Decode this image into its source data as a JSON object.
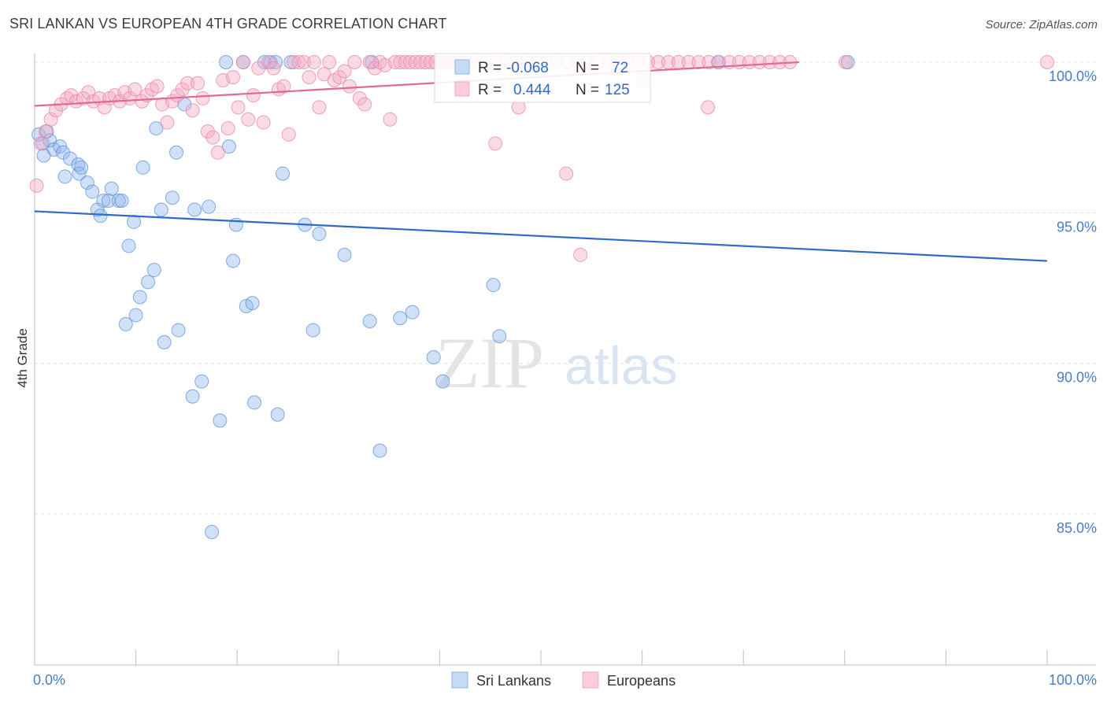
{
  "title": "SRI LANKAN VS EUROPEAN 4TH GRADE CORRELATION CHART",
  "source": "Source: ZipAtlas.com",
  "watermark": {
    "zip": "ZIP",
    "atlas": "atlas"
  },
  "chart_data": {
    "type": "scatter",
    "title": "SRI LANKAN VS EUROPEAN 4TH GRADE CORRELATION CHART",
    "xlabel": "",
    "ylabel": "4th Grade",
    "xlim": [
      0,
      100
    ],
    "ylim": [
      80.5,
      100.8
    ],
    "x_tick_labels": [
      {
        "value": 0,
        "label": "0.0%"
      },
      {
        "value": 100,
        "label": "100.0%"
      }
    ],
    "x_minor_ticks": [
      0,
      10,
      20,
      30,
      40,
      50,
      60,
      70,
      80,
      90,
      100
    ],
    "y_ticks": [
      {
        "value": 100,
        "label": "100.0%"
      },
      {
        "value": 95,
        "label": "95.0%"
      },
      {
        "value": 90,
        "label": "90.0%"
      },
      {
        "value": 85,
        "label": "85.0%"
      }
    ],
    "legend": {
      "placement": "top-center",
      "rows": [
        {
          "r_label": "R =",
          "r_value": "-0.068",
          "n_label": "N =",
          "n_value": "72",
          "color": "#8fb6ea"
        },
        {
          "r_label": "R =",
          "r_value": "0.444",
          "n_label": "N =",
          "n_value": "125",
          "color": "#f4a9c0"
        }
      ]
    },
    "series": [
      {
        "name": "Sri Lankans",
        "color": "#8fb6ea",
        "stroke": "#5e93d8",
        "trendline": {
          "x": [
            0,
            100
          ],
          "y": [
            95.05,
            93.4
          ],
          "color": "#2f6ac8"
        },
        "points": [
          [
            0.4,
            97.6
          ],
          [
            0.8,
            97.3
          ],
          [
            1.2,
            97.7
          ],
          [
            1.5,
            97.4
          ],
          [
            1.9,
            97.1
          ],
          [
            2.5,
            97.2
          ],
          [
            2.8,
            97.0
          ],
          [
            3.5,
            96.8
          ],
          [
            4.3,
            96.6
          ],
          [
            4.4,
            96.3
          ],
          [
            4.6,
            96.5
          ],
          [
            5.2,
            96.0
          ],
          [
            5.7,
            95.7
          ],
          [
            6.2,
            95.1
          ],
          [
            6.5,
            94.9
          ],
          [
            6.8,
            95.4
          ],
          [
            7.3,
            95.4
          ],
          [
            7.6,
            95.8
          ],
          [
            8.3,
            95.4
          ],
          [
            8.6,
            95.4
          ],
          [
            9.3,
            93.9
          ],
          [
            9.8,
            94.7
          ],
          [
            10.4,
            92.2
          ],
          [
            10.7,
            96.5
          ],
          [
            11.2,
            92.7
          ],
          [
            11.8,
            93.1
          ],
          [
            12.0,
            97.8
          ],
          [
            12.5,
            95.1
          ],
          [
            12.8,
            90.7
          ],
          [
            13.6,
            95.5
          ],
          [
            14.2,
            91.1
          ],
          [
            14.8,
            98.6
          ],
          [
            15.6,
            88.9
          ],
          [
            15.8,
            95.1
          ],
          [
            16.5,
            89.4
          ],
          [
            17.2,
            95.2
          ],
          [
            17.5,
            84.4
          ],
          [
            18.3,
            88.1
          ],
          [
            18.9,
            100.0
          ],
          [
            19.2,
            97.2
          ],
          [
            19.6,
            93.4
          ],
          [
            19.9,
            94.6
          ],
          [
            20.6,
            100.0
          ],
          [
            20.9,
            91.9
          ],
          [
            21.5,
            92.0
          ],
          [
            21.7,
            88.7
          ],
          [
            22.7,
            100.0
          ],
          [
            23.3,
            100.0
          ],
          [
            23.8,
            100.0
          ],
          [
            24.0,
            88.3
          ],
          [
            24.5,
            96.3
          ],
          [
            25.3,
            100.0
          ],
          [
            26.7,
            94.6
          ],
          [
            27.5,
            91.1
          ],
          [
            28.1,
            94.3
          ],
          [
            30.6,
            93.6
          ],
          [
            33.1,
            91.4
          ],
          [
            33.3,
            100.0
          ],
          [
            34.1,
            87.1
          ],
          [
            36.1,
            91.5
          ],
          [
            37.3,
            91.7
          ],
          [
            39.4,
            90.2
          ],
          [
            40.3,
            89.4
          ],
          [
            45.3,
            92.6
          ],
          [
            45.9,
            90.9
          ],
          [
            67.5,
            100.0
          ],
          [
            80.3,
            100.0
          ],
          [
            9.0,
            91.3
          ],
          [
            10.0,
            91.6
          ],
          [
            14.0,
            97.0
          ],
          [
            0.9,
            96.9
          ],
          [
            3.0,
            96.2
          ]
        ]
      },
      {
        "name": "Europeans",
        "color": "#f4a9c0",
        "stroke": "#e985a6",
        "trendline": {
          "x": [
            0,
            75.5
          ],
          "y": [
            98.55,
            100.0
          ],
          "color": "#e2698f"
        },
        "points": [
          [
            0.2,
            95.9
          ],
          [
            0.6,
            97.3
          ],
          [
            1.1,
            97.7
          ],
          [
            1.6,
            98.1
          ],
          [
            2.1,
            98.4
          ],
          [
            2.6,
            98.6
          ],
          [
            3.2,
            98.8
          ],
          [
            3.6,
            98.9
          ],
          [
            4.1,
            98.7
          ],
          [
            4.8,
            98.8
          ],
          [
            5.3,
            99.0
          ],
          [
            5.8,
            98.7
          ],
          [
            6.4,
            98.8
          ],
          [
            6.9,
            98.5
          ],
          [
            7.4,
            98.8
          ],
          [
            7.9,
            98.9
          ],
          [
            8.4,
            98.7
          ],
          [
            8.9,
            99.0
          ],
          [
            9.4,
            98.8
          ],
          [
            9.9,
            99.1
          ],
          [
            10.6,
            98.7
          ],
          [
            11.1,
            98.9
          ],
          [
            11.6,
            99.1
          ],
          [
            12.1,
            99.2
          ],
          [
            12.6,
            98.6
          ],
          [
            13.1,
            98.0
          ],
          [
            13.6,
            98.7
          ],
          [
            14.1,
            98.9
          ],
          [
            14.6,
            99.1
          ],
          [
            15.1,
            99.3
          ],
          [
            15.6,
            98.4
          ],
          [
            16.1,
            99.3
          ],
          [
            16.6,
            98.8
          ],
          [
            17.1,
            97.7
          ],
          [
            17.6,
            97.5
          ],
          [
            18.1,
            97.0
          ],
          [
            18.6,
            99.4
          ],
          [
            19.1,
            97.8
          ],
          [
            19.6,
            99.5
          ],
          [
            20.1,
            98.5
          ],
          [
            20.6,
            100.0
          ],
          [
            21.1,
            98.1
          ],
          [
            21.6,
            98.9
          ],
          [
            22.1,
            99.8
          ],
          [
            22.6,
            98.0
          ],
          [
            23.1,
            100.0
          ],
          [
            23.6,
            99.8
          ],
          [
            24.1,
            99.1
          ],
          [
            24.6,
            99.2
          ],
          [
            25.1,
            97.6
          ],
          [
            25.6,
            100.0
          ],
          [
            26.1,
            100.0
          ],
          [
            26.6,
            100.0
          ],
          [
            27.1,
            99.5
          ],
          [
            27.6,
            100.0
          ],
          [
            28.1,
            98.5
          ],
          [
            28.6,
            99.6
          ],
          [
            29.1,
            100.0
          ],
          [
            29.6,
            99.4
          ],
          [
            30.1,
            99.5
          ],
          [
            30.6,
            99.7
          ],
          [
            31.1,
            99.2
          ],
          [
            31.6,
            100.0
          ],
          [
            32.1,
            98.8
          ],
          [
            32.6,
            98.6
          ],
          [
            33.1,
            100.0
          ],
          [
            33.6,
            99.8
          ],
          [
            34.1,
            100.0
          ],
          [
            34.6,
            99.9
          ],
          [
            35.1,
            98.1
          ],
          [
            35.6,
            100.0
          ],
          [
            36.1,
            100.0
          ],
          [
            36.6,
            100.0
          ],
          [
            37.1,
            100.0
          ],
          [
            37.6,
            100.0
          ],
          [
            38.1,
            100.0
          ],
          [
            38.6,
            100.0
          ],
          [
            39.1,
            100.0
          ],
          [
            39.6,
            100.0
          ],
          [
            40.1,
            100.0
          ],
          [
            40.6,
            100.0
          ],
          [
            41.1,
            100.0
          ],
          [
            41.6,
            100.0
          ],
          [
            42.1,
            100.0
          ],
          [
            42.6,
            100.0
          ],
          [
            43.6,
            100.0
          ],
          [
            44.6,
            100.0
          ],
          [
            45.6,
            100.0
          ],
          [
            46.6,
            100.0
          ],
          [
            47.6,
            100.0
          ],
          [
            48.6,
            100.0
          ],
          [
            49.6,
            100.0
          ],
          [
            50.6,
            100.0
          ],
          [
            51.6,
            100.0
          ],
          [
            52.6,
            100.0
          ],
          [
            53.6,
            100.0
          ],
          [
            54.6,
            100.0
          ],
          [
            55.6,
            100.0
          ],
          [
            56.6,
            100.0
          ],
          [
            57.6,
            100.0
          ],
          [
            58.6,
            100.0
          ],
          [
            59.6,
            100.0
          ],
          [
            60.6,
            100.0
          ],
          [
            61.6,
            100.0
          ],
          [
            62.6,
            100.0
          ],
          [
            63.6,
            100.0
          ],
          [
            64.6,
            100.0
          ],
          [
            65.6,
            100.0
          ],
          [
            66.6,
            100.0
          ],
          [
            67.6,
            100.0
          ],
          [
            68.6,
            100.0
          ],
          [
            69.6,
            100.0
          ],
          [
            70.6,
            100.0
          ],
          [
            71.6,
            100.0
          ],
          [
            72.6,
            100.0
          ],
          [
            73.6,
            100.0
          ],
          [
            74.6,
            100.0
          ],
          [
            45.5,
            97.3
          ],
          [
            47.8,
            98.5
          ],
          [
            52.5,
            96.3
          ],
          [
            53.9,
            93.6
          ],
          [
            60.1,
            99.4
          ],
          [
            66.5,
            98.5
          ],
          [
            80.1,
            100.0
          ],
          [
            100.0,
            100.0
          ]
        ]
      }
    ]
  }
}
